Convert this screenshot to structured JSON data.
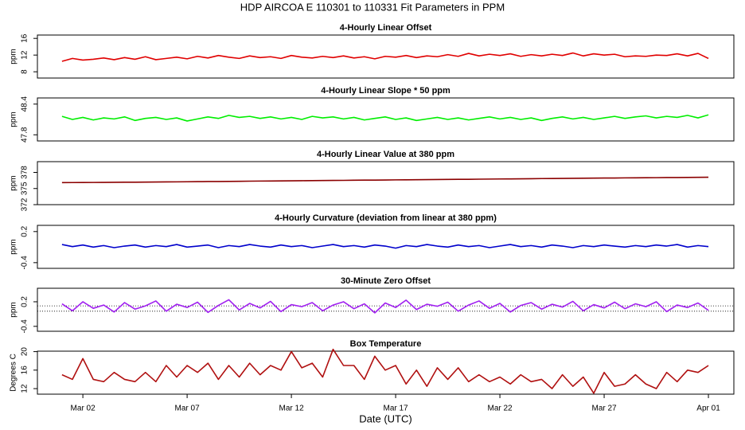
{
  "title": "HDP   AIRCOA E   110301 to 110331   Fit Parameters in PPM",
  "chart_data": [
    {
      "type": "line",
      "title": "4-Hourly Linear Offset",
      "ylabel": "ppm",
      "color": "#e00000",
      "xlim": [
        -0.18,
        33.22
      ],
      "ylim": [
        6.5,
        16.8
      ],
      "yticks": [
        8,
        12,
        16
      ],
      "x": [
        1,
        1.5,
        2,
        2.5,
        3,
        3.5,
        4,
        4.5,
        5,
        5.5,
        6,
        6.5,
        7,
        7.5,
        8,
        8.5,
        9,
        9.5,
        10,
        10.5,
        11,
        11.5,
        12,
        12.5,
        13,
        13.5,
        14,
        14.5,
        15,
        15.5,
        16,
        16.5,
        17,
        17.5,
        18,
        18.5,
        19,
        19.5,
        20,
        20.5,
        21,
        21.5,
        22,
        22.5,
        23,
        23.5,
        24,
        24.5,
        25,
        25.5,
        26,
        26.5,
        27,
        27.5,
        28,
        28.5,
        29,
        29.5,
        30,
        30.5,
        31,
        31.5,
        32
      ],
      "values": [
        10.5,
        11.2,
        10.8,
        11.0,
        11.3,
        10.9,
        11.4,
        11.0,
        11.6,
        10.9,
        11.2,
        11.5,
        11.1,
        11.7,
        11.3,
        11.9,
        11.5,
        11.2,
        11.8,
        11.4,
        11.6,
        11.2,
        11.9,
        11.5,
        11.3,
        11.7,
        11.4,
        11.8,
        11.3,
        11.6,
        11.1,
        11.7,
        11.5,
        11.9,
        11.4,
        11.8,
        11.6,
        12.1,
        11.7,
        12.4,
        11.8,
        12.2,
        11.9,
        12.3,
        11.7,
        12.1,
        11.8,
        12.2,
        11.9,
        12.5,
        11.8,
        12.3,
        12.0,
        12.2,
        11.6,
        11.8,
        11.7,
        12.0,
        11.9,
        12.3,
        11.8,
        12.4,
        11.2
      ]
    },
    {
      "type": "line",
      "title": "4-Hourly Linear Slope * 50 ppm",
      "ylabel": "ppm",
      "color": "#00ee00",
      "xlim": [
        -0.18,
        33.22
      ],
      "ylim": [
        47.68,
        48.52
      ],
      "yticks": [
        47.8,
        48.4
      ],
      "x": [
        1,
        1.5,
        2,
        2.5,
        3,
        3.5,
        4,
        4.5,
        5,
        5.5,
        6,
        6.5,
        7,
        7.5,
        8,
        8.5,
        9,
        9.5,
        10,
        10.5,
        11,
        11.5,
        12,
        12.5,
        13,
        13.5,
        14,
        14.5,
        15,
        15.5,
        16,
        16.5,
        17,
        17.5,
        18,
        18.5,
        19,
        19.5,
        20,
        20.5,
        21,
        21.5,
        22,
        22.5,
        23,
        23.5,
        24,
        24.5,
        25,
        25.5,
        26,
        26.5,
        27,
        27.5,
        28,
        28.5,
        29,
        29.5,
        30,
        30.5,
        31,
        31.5,
        32
      ],
      "values": [
        48.16,
        48.1,
        48.14,
        48.09,
        48.13,
        48.11,
        48.15,
        48.08,
        48.12,
        48.14,
        48.1,
        48.13,
        48.07,
        48.11,
        48.15,
        48.12,
        48.18,
        48.14,
        48.16,
        48.12,
        48.15,
        48.11,
        48.14,
        48.1,
        48.16,
        48.13,
        48.15,
        48.11,
        48.14,
        48.09,
        48.12,
        48.15,
        48.1,
        48.13,
        48.08,
        48.11,
        48.14,
        48.1,
        48.13,
        48.09,
        48.12,
        48.15,
        48.11,
        48.14,
        48.1,
        48.13,
        48.08,
        48.12,
        48.15,
        48.11,
        48.14,
        48.1,
        48.13,
        48.16,
        48.12,
        48.15,
        48.17,
        48.13,
        48.16,
        48.14,
        48.18,
        48.13,
        48.19
      ]
    },
    {
      "type": "line",
      "title": "4-Hourly Linear Value at 380 ppm",
      "ylabel": "ppm",
      "color": "#8b0000",
      "xlim": [
        -0.18,
        33.22
      ],
      "ylim": [
        372,
        380
      ],
      "yticks": [
        372,
        375,
        378
      ],
      "x": [
        1,
        1.5,
        2,
        2.5,
        3,
        3.5,
        4,
        4.5,
        5,
        5.5,
        6,
        6.5,
        7,
        7.5,
        8,
        8.5,
        9,
        9.5,
        10,
        10.5,
        11,
        11.5,
        12,
        12.5,
        13,
        13.5,
        14,
        14.5,
        15,
        15.5,
        16,
        16.5,
        17,
        17.5,
        18,
        18.5,
        19,
        19.5,
        20,
        20.5,
        21,
        21.5,
        22,
        22.5,
        23,
        23.5,
        24,
        24.5,
        25,
        25.5,
        26,
        26.5,
        27,
        27.5,
        28,
        28.5,
        29,
        29.5,
        30,
        30.5,
        31,
        31.5,
        32
      ],
      "values": [
        376.1,
        376.11,
        376.12,
        376.13,
        376.14,
        376.16,
        376.17,
        376.18,
        376.2,
        376.21,
        376.23,
        376.24,
        376.26,
        376.28,
        376.3,
        376.31,
        376.33,
        376.35,
        376.37,
        376.39,
        376.4,
        376.42,
        376.44,
        376.46,
        376.47,
        376.49,
        376.51,
        376.52,
        376.54,
        376.56,
        376.57,
        376.59,
        376.61,
        376.62,
        376.64,
        376.66,
        376.67,
        376.69,
        376.71,
        376.72,
        376.74,
        376.76,
        376.78,
        376.79,
        376.81,
        376.83,
        376.85,
        376.86,
        376.88,
        376.9,
        376.91,
        376.93,
        376.95,
        376.96,
        376.98,
        376.99,
        377.01,
        377.02,
        377.04,
        377.05,
        377.07,
        377.08,
        377.1
      ]
    },
    {
      "type": "line",
      "title": "4-Hourly Curvature (deviation from linear at 380 ppm)",
      "ylabel": "ppm",
      "color": "#0000cc",
      "xlim": [
        -0.18,
        33.22
      ],
      "ylim": [
        -0.51,
        0.32
      ],
      "yticks": [
        -0.4,
        0.2
      ],
      "x": [
        1,
        1.5,
        2,
        2.5,
        3,
        3.5,
        4,
        4.5,
        5,
        5.5,
        6,
        6.5,
        7,
        7.5,
        8,
        8.5,
        9,
        9.5,
        10,
        10.5,
        11,
        11.5,
        12,
        12.5,
        13,
        13.5,
        14,
        14.5,
        15,
        15.5,
        16,
        16.5,
        17,
        17.5,
        18,
        18.5,
        19,
        19.5,
        20,
        20.5,
        21,
        21.5,
        22,
        22.5,
        23,
        23.5,
        24,
        24.5,
        25,
        25.5,
        26,
        26.5,
        27,
        27.5,
        28,
        28.5,
        29,
        29.5,
        30,
        30.5,
        31,
        31.5,
        32
      ],
      "values": [
        -0.05,
        -0.09,
        -0.06,
        -0.1,
        -0.07,
        -0.11,
        -0.08,
        -0.06,
        -0.1,
        -0.07,
        -0.09,
        -0.05,
        -0.1,
        -0.08,
        -0.06,
        -0.11,
        -0.07,
        -0.09,
        -0.05,
        -0.08,
        -0.1,
        -0.06,
        -0.09,
        -0.07,
        -0.11,
        -0.08,
        -0.05,
        -0.09,
        -0.07,
        -0.1,
        -0.06,
        -0.08,
        -0.12,
        -0.07,
        -0.09,
        -0.05,
        -0.08,
        -0.1,
        -0.06,
        -0.09,
        -0.07,
        -0.11,
        -0.08,
        -0.05,
        -0.09,
        -0.07,
        -0.1,
        -0.06,
        -0.08,
        -0.11,
        -0.07,
        -0.09,
        -0.06,
        -0.08,
        -0.1,
        -0.07,
        -0.09,
        -0.06,
        -0.08,
        -0.05,
        -0.1,
        -0.07,
        -0.09
      ]
    },
    {
      "type": "line",
      "title": "30-Minute Zero Offset",
      "ylabel": "ppm",
      "color": "#a020f0",
      "xlim": [
        -0.18,
        33.22
      ],
      "ylim": [
        -0.52,
        0.53
      ],
      "yticks": [
        -0.4,
        0.2
      ],
      "hlines": [
        0.1,
        -0.03
      ],
      "x": [
        1,
        1.5,
        2,
        2.5,
        3,
        3.5,
        4,
        4.5,
        5,
        5.5,
        6,
        6.5,
        7,
        7.5,
        8,
        8.5,
        9,
        9.5,
        10,
        10.5,
        11,
        11.5,
        12,
        12.5,
        13,
        13.5,
        14,
        14.5,
        15,
        15.5,
        16,
        16.5,
        17,
        17.5,
        18,
        18.5,
        19,
        19.5,
        20,
        20.5,
        21,
        21.5,
        22,
        22.5,
        23,
        23.5,
        24,
        24.5,
        25,
        25.5,
        26,
        26.5,
        27,
        27.5,
        28,
        28.5,
        29,
        29.5,
        30,
        30.5,
        31,
        31.5,
        32
      ],
      "values": [
        0.15,
        -0.02,
        0.2,
        0.04,
        0.12,
        -0.05,
        0.18,
        0.02,
        0.1,
        0.22,
        -0.03,
        0.14,
        0.06,
        0.19,
        -0.06,
        0.11,
        0.25,
        0.0,
        0.16,
        0.05,
        0.21,
        -0.04,
        0.13,
        0.08,
        0.18,
        -0.02,
        0.12,
        0.2,
        0.03,
        0.15,
        -0.07,
        0.17,
        0.06,
        0.24,
        0.01,
        0.14,
        0.09,
        0.19,
        -0.03,
        0.12,
        0.22,
        0.04,
        0.16,
        -0.05,
        0.11,
        0.18,
        0.02,
        0.14,
        0.07,
        0.21,
        -0.02,
        0.13,
        0.05,
        0.19,
        0.03,
        0.15,
        0.08,
        0.2,
        -0.04,
        0.12,
        0.06,
        0.17,
        -0.01
      ]
    },
    {
      "type": "line",
      "title": "Box Temperature",
      "ylabel": "Degrees C",
      "color": "#b01010",
      "xlim": [
        -0.18,
        33.22
      ],
      "ylim": [
        10.8,
        20.1
      ],
      "yticks": [
        12,
        16,
        20
      ],
      "xlabel": "Date (UTC)",
      "xticks": [
        {
          "value": 2,
          "label": "Mar 02"
        },
        {
          "value": 7,
          "label": "Mar 07"
        },
        {
          "value": 12,
          "label": "Mar 12"
        },
        {
          "value": 17,
          "label": "Mar 17"
        },
        {
          "value": 22,
          "label": "Mar 22"
        },
        {
          "value": 27,
          "label": "Mar 27"
        },
        {
          "value": 32,
          "label": "Apr 01"
        }
      ],
      "x": [
        1,
        1.5,
        2,
        2.5,
        3,
        3.5,
        4,
        4.5,
        5,
        5.5,
        6,
        6.5,
        7,
        7.5,
        8,
        8.5,
        9,
        9.5,
        10,
        10.5,
        11,
        11.5,
        12,
        12.5,
        13,
        13.5,
        14,
        14.5,
        15,
        15.5,
        16,
        16.5,
        17,
        17.5,
        18,
        18.5,
        19,
        19.5,
        20,
        20.5,
        21,
        21.5,
        22,
        22.5,
        23,
        23.5,
        24,
        24.5,
        25,
        25.5,
        26,
        26.5,
        27,
        27.5,
        28,
        28.5,
        29,
        29.5,
        30,
        30.5,
        31,
        31.5,
        32
      ],
      "values": [
        15,
        14,
        18.5,
        14,
        13.5,
        15.5,
        14,
        13.5,
        15.5,
        13.5,
        17,
        14.5,
        17,
        15.5,
        17.5,
        14,
        17,
        14.5,
        17.5,
        15,
        17,
        16,
        20,
        16.5,
        17.5,
        14.5,
        20.5,
        17,
        17,
        14,
        19,
        16,
        17,
        13,
        16,
        12.5,
        16.5,
        14,
        16.5,
        13.5,
        15,
        13.5,
        14.5,
        13,
        15,
        13.5,
        14,
        12,
        15,
        12.5,
        14.5,
        11,
        15.5,
        12.5,
        13,
        15,
        13,
        12,
        15.5,
        13.5,
        16,
        15.5,
        17
      ]
    }
  ]
}
